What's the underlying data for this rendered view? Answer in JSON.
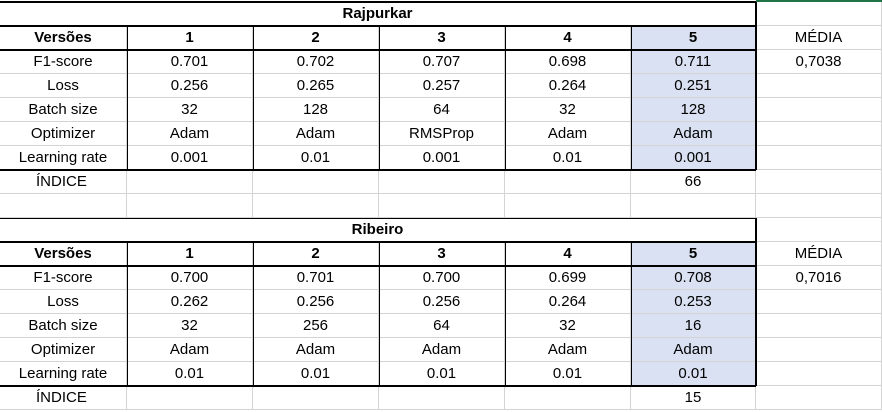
{
  "tables": [
    {
      "title": "Rajpurkar",
      "header_label": "Versões",
      "versions": [
        "1",
        "2",
        "3",
        "4",
        "5"
      ],
      "rows": [
        {
          "label": "F1-score",
          "values": [
            "0.701",
            "0.702",
            "0.707",
            "0.698",
            "0.711"
          ]
        },
        {
          "label": "Loss",
          "values": [
            "0.256",
            "0.265",
            "0.257",
            "0.264",
            "0.251"
          ]
        },
        {
          "label": "Batch size",
          "values": [
            "32",
            "128",
            "64",
            "32",
            "128"
          ]
        },
        {
          "label": "Optimizer",
          "values": [
            "Adam",
            "Adam",
            "RMSProp",
            "Adam",
            "Adam"
          ]
        },
        {
          "label": "Learning rate",
          "values": [
            "0.001",
            "0.01",
            "0.001",
            "0.01",
            "0.001"
          ]
        }
      ],
      "index_label": "ÍNDICE",
      "index_value": "66",
      "media_label": "MÉDIA",
      "media_value": "0,7038",
      "highlight_version": "5"
    },
    {
      "title": "Ribeiro",
      "header_label": "Versões",
      "versions": [
        "1",
        "2",
        "3",
        "4",
        "5"
      ],
      "rows": [
        {
          "label": "F1-score",
          "values": [
            "0.700",
            "0.701",
            "0.700",
            "0.699",
            "0.708"
          ]
        },
        {
          "label": "Loss",
          "values": [
            "0.262",
            "0.256",
            "0.256",
            "0.264",
            "0.253"
          ]
        },
        {
          "label": "Batch size",
          "values": [
            "32",
            "256",
            "64",
            "32",
            "16"
          ]
        },
        {
          "label": "Optimizer",
          "values": [
            "Adam",
            "Adam",
            "Adam",
            "Adam",
            "Adam"
          ]
        },
        {
          "label": "Learning rate",
          "values": [
            "0.01",
            "0.01",
            "0.01",
            "0.01",
            "0.01"
          ]
        }
      ],
      "index_label": "ÍNDICE",
      "index_value": "15",
      "media_label": "MÉDIA",
      "media_value": "0,7016",
      "highlight_version": "5"
    }
  ],
  "colors": {
    "highlight": "#d9e1f2",
    "gridline": "#d4d4d4",
    "border": "#000000",
    "selection_accent": "#217346"
  }
}
